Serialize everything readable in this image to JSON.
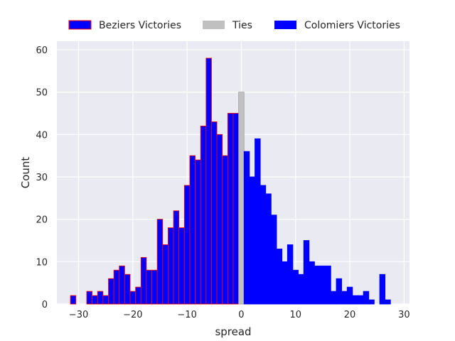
{
  "chart_data": {
    "type": "bar",
    "subtype": "histogram",
    "xlabel": "spread",
    "ylabel": "Count",
    "xlim": [
      -34,
      31
    ],
    "ylim": [
      0,
      62
    ],
    "bin_width": 1,
    "xticks": [
      -30,
      -20,
      -10,
      0,
      10,
      20,
      30
    ],
    "yticks": [
      0,
      10,
      20,
      30,
      40,
      50,
      60
    ],
    "xtick_labels": [
      "−30",
      "−20",
      "−10",
      "0",
      "10",
      "20",
      "30"
    ],
    "ytick_labels": [
      "0",
      "10",
      "20",
      "30",
      "40",
      "50",
      "60"
    ],
    "grid": true,
    "legend_position": "top-center",
    "background": "#eaeaf2",
    "series": [
      {
        "name": "Beziers Victories",
        "fill": "#0000ff",
        "edge": "#ff0000",
        "x": [
          -31,
          -29,
          -28,
          -27,
          -26,
          -25,
          -24,
          -23,
          -22,
          -21,
          -20,
          -19,
          -18,
          -17,
          -16,
          -15,
          -14,
          -13,
          -12,
          -11,
          -10,
          -9,
          -8,
          -7,
          -6,
          -5,
          -4,
          -3,
          -2,
          -1
        ],
        "values": [
          2,
          0,
          3,
          2,
          3,
          2,
          6,
          8,
          9,
          7,
          3,
          4,
          11,
          8,
          8,
          20,
          14,
          18,
          22,
          18,
          28,
          35,
          34,
          42,
          58,
          43,
          40,
          35,
          45,
          45
        ]
      },
      {
        "name": "Ties",
        "fill": "#c0c0c0",
        "edge": "#a0a0a0",
        "x": [
          0
        ],
        "values": [
          50
        ]
      },
      {
        "name": "Colomiers Victories",
        "fill": "#0000ff",
        "edge": "#0000ff",
        "x": [
          1,
          2,
          3,
          4,
          5,
          6,
          7,
          8,
          9,
          10,
          11,
          12,
          13,
          14,
          15,
          16,
          17,
          18,
          19,
          20,
          21,
          22,
          23,
          24,
          25,
          26,
          27,
          28
        ],
        "values": [
          36,
          30,
          39,
          28,
          26,
          21,
          13,
          10,
          14,
          8,
          7,
          15,
          10,
          9,
          9,
          9,
          3,
          6,
          3,
          4,
          2,
          2,
          3,
          1,
          0,
          7,
          1,
          0
        ]
      }
    ]
  }
}
